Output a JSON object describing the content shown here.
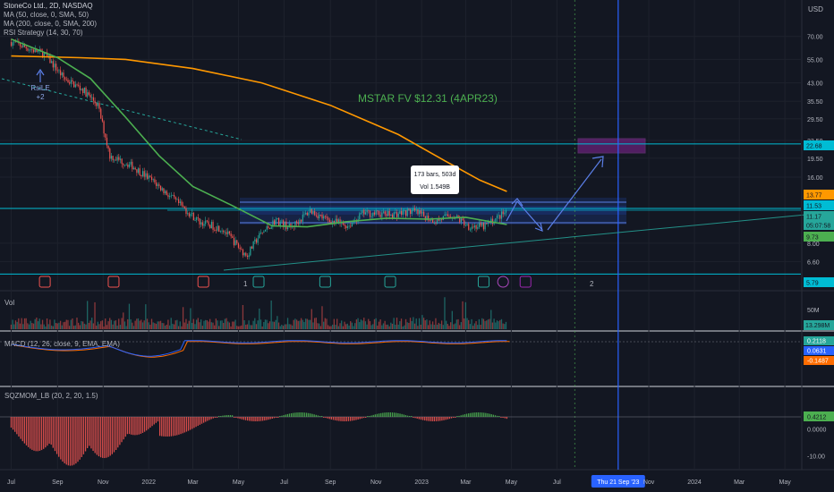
{
  "header": {
    "symbol": "StoneCo Ltd., 2D, NASDAQ",
    "indicators": [
      "MA (50, close, 0, SMA, 50)",
      "MA (200, close, 0, SMA, 200)",
      "RSI Strategy (14, 30, 70)"
    ],
    "currency": "USD"
  },
  "annotations": {
    "mstar": "MSTAR FV $12.31 (4APR23)",
    "tooltip_bars": "173 bars, 503d",
    "tooltip_vol": "Vol 1.549B",
    "rsile_label": "RsiLE",
    "rsile_count": "+2",
    "marker_1": "1",
    "marker_2": "2"
  },
  "panes": {
    "vol": "Vol",
    "macd": "MACD (12, 26, close, 9, EMA, EMA)",
    "sqz": "SQZMOM_LB (20, 2, 20, 1.5)"
  },
  "colors": {
    "background": "#131722",
    "up": "#26a69a",
    "down": "#ef5350",
    "ma50": "#4caf50",
    "ma200": "#ff9800",
    "cyan": "#00bcd4",
    "blue": "#2962ff",
    "mstar_text": "#4caf50"
  },
  "chart_data": {
    "type": "candlestick",
    "title": "StoneCo Ltd., 2D, NASDAQ",
    "x_labels": [
      "Jul",
      "Sep",
      "Nov",
      "2022",
      "Mar",
      "May",
      "Jul",
      "Sep",
      "Nov",
      "2023",
      "Mar",
      "May",
      "Jul",
      "Thu 21 Sep '23",
      "Nov",
      "2024",
      "Mar",
      "May"
    ],
    "y_ticks": [
      70.0,
      55.0,
      43.0,
      35.5,
      29.5,
      23.5,
      19.5,
      16.0,
      8.0,
      6.6
    ],
    "y_scale": "log",
    "y_range": [
      5.0,
      85.0
    ],
    "price_badges": [
      {
        "value": "22.68",
        "color": "#00bcd4"
      },
      {
        "value": "13.77",
        "color": "#ff9800"
      },
      {
        "value": "11.53",
        "color": "#00bcd4"
      },
      {
        "value": "11.17",
        "color": "#26a69a"
      },
      {
        "value": "05:07:58",
        "color": "#26a69a"
      },
      {
        "value": "9.73",
        "color": "#4caf50"
      },
      {
        "value": "5.79",
        "color": "#00bcd4"
      }
    ],
    "price_path": [
      [
        "2021-07-01",
        66
      ],
      [
        "2021-08-15",
        58
      ],
      [
        "2021-09-10",
        45
      ],
      [
        "2021-10-05",
        40
      ],
      [
        "2021-10-25",
        34
      ],
      [
        "2021-11-10",
        20
      ],
      [
        "2021-12-10",
        18
      ],
      [
        "2022-01-10",
        15
      ],
      [
        "2022-02-05",
        12.5
      ],
      [
        "2022-03-10",
        10
      ],
      [
        "2022-04-10",
        9.3
      ],
      [
        "2022-05-12",
        7.0
      ],
      [
        "2022-05-28",
        8.6
      ],
      [
        "2022-06-20",
        10.2
      ],
      [
        "2022-07-10",
        9.4
      ],
      [
        "2022-08-05",
        11.3
      ],
      [
        "2022-08-25",
        10.3
      ],
      [
        "2022-09-25",
        9.6
      ],
      [
        "2022-10-15",
        11.0
      ],
      [
        "2022-11-20",
        10.8
      ],
      [
        "2022-12-20",
        11.2
      ],
      [
        "2023-01-20",
        10.1
      ],
      [
        "2023-02-10",
        10.8
      ],
      [
        "2023-03-05",
        9.6
      ],
      [
        "2023-03-25",
        9.5
      ],
      [
        "2023-04-15",
        10.6
      ],
      [
        "2023-04-25",
        11.17
      ]
    ],
    "ma50_path": [
      [
        "2021-07-01",
        68
      ],
      [
        "2021-09-01",
        56
      ],
      [
        "2021-10-15",
        45
      ],
      [
        "2021-12-01",
        30
      ],
      [
        "2022-01-15",
        20
      ],
      [
        "2022-03-01",
        14.5
      ],
      [
        "2022-04-20",
        12
      ],
      [
        "2022-06-15",
        9.6
      ],
      [
        "2022-08-01",
        9.5
      ],
      [
        "2022-09-20",
        10.0
      ],
      [
        "2022-11-15",
        10.4
      ],
      [
        "2023-01-10",
        10.3
      ],
      [
        "2023-03-01",
        10.5
      ],
      [
        "2023-04-25",
        9.73
      ]
    ],
    "ma200_path": [
      [
        "2021-07-01",
        57
      ],
      [
        "2021-10-01",
        56
      ],
      [
        "2021-12-01",
        55
      ],
      [
        "2022-03-01",
        50
      ],
      [
        "2022-06-01",
        43
      ],
      [
        "2022-09-01",
        34
      ],
      [
        "2022-12-01",
        25
      ],
      [
        "2023-02-01",
        19
      ],
      [
        "2023-03-20",
        15.5
      ],
      [
        "2023-04-25",
        13.77
      ]
    ],
    "levels": [
      {
        "name": "resistance",
        "value": 22.68
      },
      {
        "name": "support_top",
        "value": 11.53
      },
      {
        "name": "support_low",
        "value": 5.79
      }
    ],
    "volume_scale": "50M",
    "volume_last": "13.298M",
    "macd_values": [
      "0.2118",
      "0.0631",
      "-0.1487"
    ],
    "sqz_ticks": [
      "0.4212",
      "0.0000",
      "-10.00"
    ]
  }
}
